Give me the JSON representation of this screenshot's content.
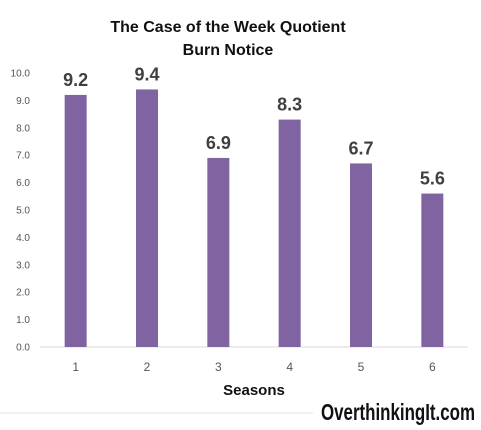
{
  "chart_data": {
    "type": "bar",
    "title": "The Case of the Week Quotient",
    "subtitle": "Burn Notice",
    "xlabel": "Seasons",
    "ylabel": "",
    "categories": [
      "1",
      "2",
      "3",
      "4",
      "5",
      "6"
    ],
    "values": [
      9.2,
      9.4,
      6.9,
      8.3,
      6.7,
      5.6
    ],
    "data_labels": [
      "9.2",
      "9.4",
      "6.9",
      "8.3",
      "6.7",
      "5.6"
    ],
    "ylim": [
      0,
      10
    ],
    "yticks": [
      "0.0",
      "1.0",
      "2.0",
      "3.0",
      "4.0",
      "5.0",
      "6.0",
      "7.0",
      "8.0",
      "9.0",
      "10.0"
    ],
    "grid": false,
    "bar_color": "#8064A2"
  },
  "watermark": "OverthinkingIt.com"
}
